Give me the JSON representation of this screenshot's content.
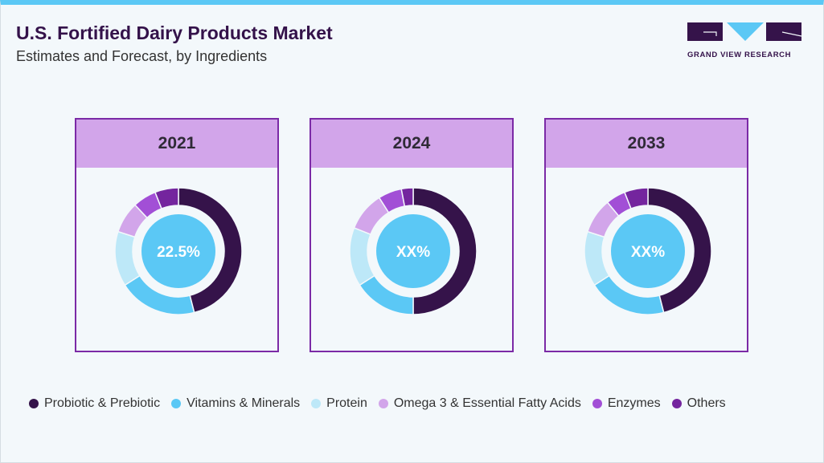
{
  "header": {
    "title": "U.S. Fortified Dairy Products Market",
    "subtitle": "Estimates and Forecast, by Ingredients"
  },
  "logo": {
    "text": "GRAND VIEW RESEARCH"
  },
  "chart_data": [
    {
      "type": "pie",
      "title": "2021",
      "center_label": "22.5%",
      "categories": [
        "Probiotic & Prebiotic",
        "Vitamins & Minerals",
        "Protein",
        "Omega 3 & Essential Fatty Acids",
        "Enzymes",
        "Others"
      ],
      "values": [
        46,
        20,
        14,
        8,
        6,
        6
      ]
    },
    {
      "type": "pie",
      "title": "2024",
      "center_label": "XX%",
      "categories": [
        "Probiotic & Prebiotic",
        "Vitamins & Minerals",
        "Protein",
        "Omega 3 & Essential Fatty Acids",
        "Enzymes",
        "Others"
      ],
      "values": [
        50,
        16,
        15,
        10,
        6,
        3
      ]
    },
    {
      "type": "pie",
      "title": "2033",
      "center_label": "XX%",
      "categories": [
        "Probiotic & Prebiotic",
        "Vitamins & Minerals",
        "Protein",
        "Omega 3 & Essential Fatty Acids",
        "Enzymes",
        "Others"
      ],
      "values": [
        46,
        20,
        14,
        9,
        5,
        6
      ]
    }
  ],
  "legend": [
    {
      "label": "Probiotic & Prebiotic",
      "color": "#35134a"
    },
    {
      "label": "Vitamins & Minerals",
      "color": "#5bc8f5"
    },
    {
      "label": "Protein",
      "color": "#bde8f8"
    },
    {
      "label": "Omega 3 & Essential Fatty Acids",
      "color": "#d2a5ea"
    },
    {
      "label": "Enzymes",
      "color": "#a24fd6"
    },
    {
      "label": "Others",
      "color": "#74259e"
    }
  ],
  "colors": {
    "center": "#5bc8f5",
    "header_band": "#d2a5ea",
    "border": "#7b2aa6"
  }
}
